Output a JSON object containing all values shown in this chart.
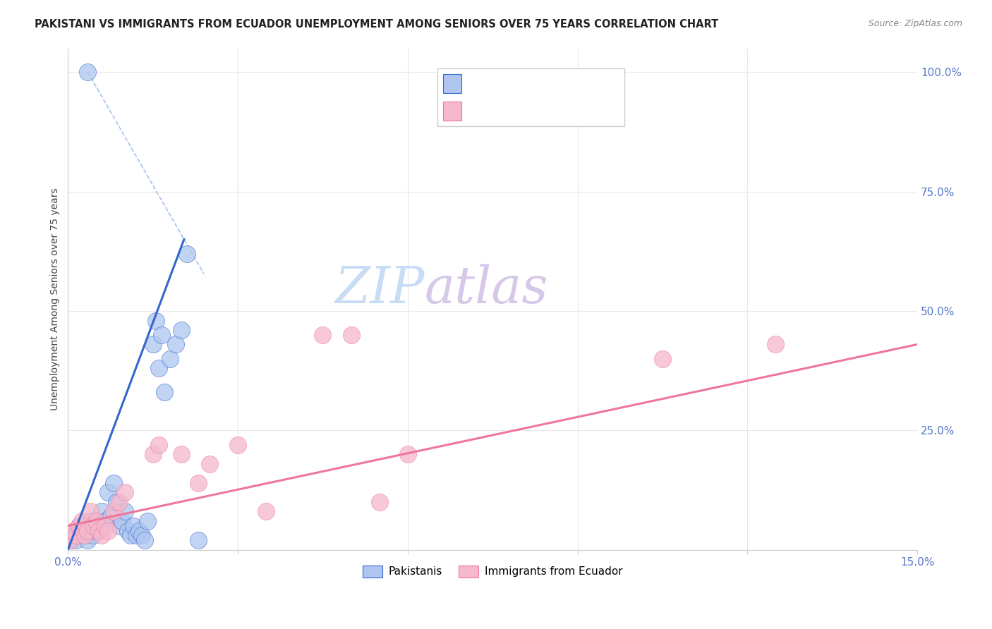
{
  "title": "PAKISTANI VS IMMIGRANTS FROM ECUADOR UNEMPLOYMENT AMONG SENIORS OVER 75 YEARS CORRELATION CHART",
  "source": "Source: ZipAtlas.com",
  "ylabel_label": "Unemployment Among Seniors over 75 years",
  "xlim": [
    0.0,
    15.0
  ],
  "ylim": [
    0.0,
    105.0
  ],
  "pakistani_color": "#aec6f0",
  "ecuador_color": "#f5b8cc",
  "line1_color": "#3366cc",
  "line2_color": "#ee7799",
  "dashed_color": "#99bbee",
  "background_color": "#ffffff",
  "grid_color": "#e8e8e8",
  "watermark_zip_color": "#c8ddf5",
  "watermark_atlas_color": "#d5c8e8",
  "pakistani_x": [
    0.05,
    0.1,
    0.15,
    0.2,
    0.25,
    0.3,
    0.35,
    0.4,
    0.45,
    0.5,
    0.55,
    0.6,
    0.65,
    0.7,
    0.75,
    0.8,
    0.85,
    0.9,
    0.95,
    1.0,
    1.05,
    1.1,
    1.15,
    1.2,
    1.25,
    1.3,
    1.35,
    1.4,
    1.5,
    1.55,
    1.6,
    1.65,
    1.7,
    1.8,
    1.9,
    2.0,
    2.1,
    2.3
  ],
  "pakistani_y": [
    2,
    3,
    2,
    5,
    4,
    3,
    2,
    6,
    3,
    4,
    5,
    8,
    6,
    12,
    7,
    14,
    10,
    5,
    6,
    8,
    4,
    3,
    5,
    3,
    4,
    3,
    2,
    6,
    43,
    48,
    38,
    45,
    33,
    40,
    43,
    46,
    62,
    2
  ],
  "outlier_x": 0.35,
  "outlier_y": 100,
  "ecuador_x": [
    0.05,
    0.1,
    0.15,
    0.2,
    0.25,
    0.3,
    0.35,
    0.4,
    0.45,
    0.5,
    0.55,
    0.6,
    0.65,
    0.7,
    0.8,
    0.9,
    1.0,
    1.5,
    1.6,
    2.0,
    2.3,
    2.5,
    3.0,
    3.5,
    4.5,
    5.0,
    5.5,
    6.0,
    10.5,
    12.5
  ],
  "ecuador_y": [
    2,
    4,
    3,
    5,
    6,
    3,
    4,
    8,
    5,
    6,
    4,
    3,
    5,
    4,
    8,
    10,
    12,
    20,
    22,
    20,
    14,
    18,
    22,
    8,
    45,
    45,
    10,
    20,
    40,
    43
  ],
  "line1_x0": 0.0,
  "line1_y0": 0.0,
  "line1_x1": 2.05,
  "line1_y1": 65.0,
  "line2_x0": 0.0,
  "line2_y0": 5.0,
  "line2_x1": 15.0,
  "line2_y1": 43.0
}
